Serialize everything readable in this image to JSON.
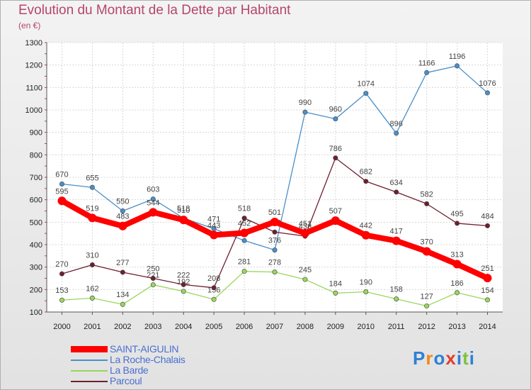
{
  "chart_data": {
    "type": "line",
    "title": "Evolution du Montant de la Dette par Habitant",
    "subtitle": "(en €)",
    "x": [
      "2000",
      "2001",
      "2002",
      "2003",
      "2004",
      "2005",
      "2006",
      "2007",
      "2008",
      "2009",
      "2010",
      "2011",
      "2012",
      "2013",
      "2014"
    ],
    "yticks": [
      "100",
      "200",
      "300",
      "400",
      "500",
      "600",
      "700",
      "800",
      "900",
      "1000",
      "1100",
      "1200",
      "1300"
    ],
    "ylim": [
      100,
      1300
    ],
    "grid": true,
    "legend_position": "bottom-left",
    "series": [
      {
        "name": "La Roche-Chalais",
        "color": "#4a8fc8",
        "values": [
          670,
          655,
          550,
          603,
          518,
          471,
          418,
          376,
          990,
          960,
          1074,
          896,
          1166,
          1196,
          1076
        ],
        "labels": [
          "670",
          "655",
          "550",
          "603",
          "518",
          "471",
          "",
          "376",
          "990",
          "960",
          "1074",
          "896",
          "1166",
          "1196",
          "1076"
        ]
      },
      {
        "name": "La Barde",
        "color": "#99d65e",
        "values": [
          153,
          162,
          134,
          221,
          192,
          156,
          281,
          278,
          245,
          184,
          190,
          158,
          127,
          186,
          154
        ],
        "labels": [
          "153",
          "162",
          "134",
          "221",
          "192",
          "156",
          "281",
          "278",
          "245",
          "184",
          "190",
          "158",
          "127",
          "186",
          "154"
        ]
      },
      {
        "name": "Parcoul",
        "color": "#6e1f2e",
        "values": [
          270,
          310,
          277,
          250,
          222,
          208,
          518,
          456,
          438,
          786,
          682,
          634,
          582,
          495,
          484
        ],
        "labels": [
          "270",
          "310",
          "277",
          "250",
          "222",
          "208",
          "518",
          "456",
          "438",
          "786",
          "682",
          "634",
          "582",
          "495",
          "484"
        ]
      },
      {
        "name": "SAINT-AIGULIN",
        "color": "#ff0000",
        "values": [
          595,
          519,
          483,
          544,
          510,
          443,
          452,
          501,
          451,
          507,
          442,
          417,
          370,
          313,
          251
        ],
        "labels": [
          "595",
          "519",
          "483",
          "544",
          "510",
          "443",
          "452",
          "501",
          "451",
          "507",
          "442",
          "417",
          "370",
          "313",
          "251"
        ]
      }
    ],
    "legend": [
      {
        "name": "SAINT-AIGULIN",
        "color": "#ff0000",
        "thick": true
      },
      {
        "name": "La Roche-Chalais",
        "color": "#4a8fc8",
        "thick": false
      },
      {
        "name": "La Barde",
        "color": "#99d65e",
        "thick": false
      },
      {
        "name": "Parcoul",
        "color": "#6e1f2e",
        "thick": false
      }
    ]
  },
  "logo": {
    "text": "Proxiti"
  }
}
